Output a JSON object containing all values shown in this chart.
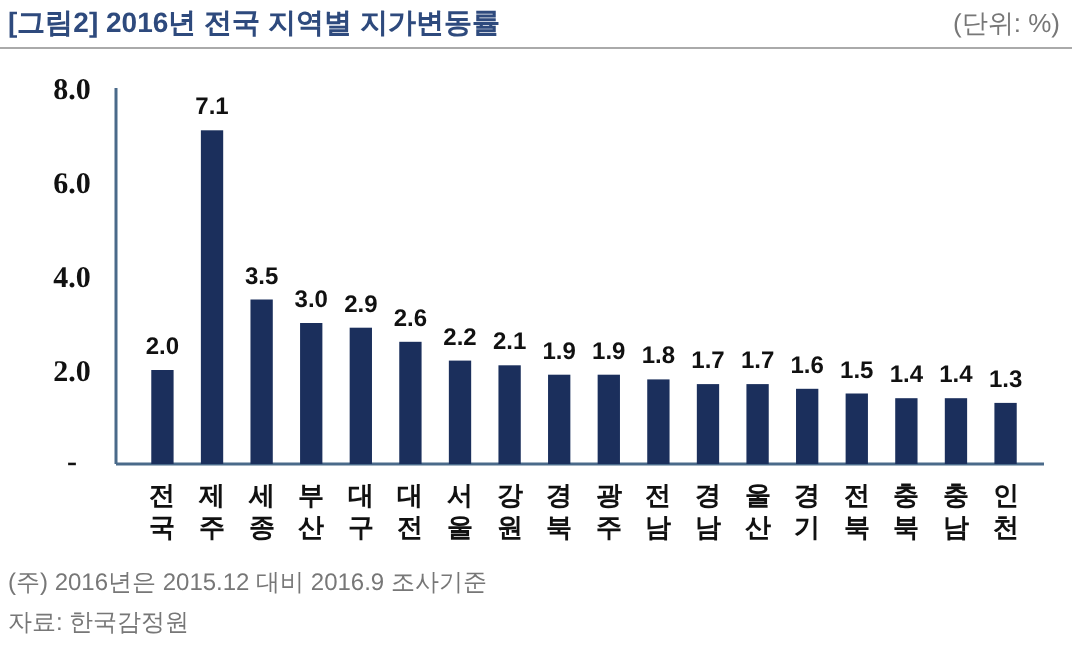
{
  "chart_data": {
    "type": "bar",
    "title": "[그림2] 2016년 전국 지역별 지가변동률",
    "subtitle": "(단위: %)",
    "categories": [
      "전국",
      "제주",
      "세종",
      "부산",
      "대구",
      "대전",
      "서울",
      "강원",
      "경북",
      "광주",
      "전남",
      "경남",
      "울산",
      "경기",
      "전북",
      "충북",
      "충남",
      "인천"
    ],
    "values": [
      2.0,
      7.1,
      3.5,
      3.0,
      2.9,
      2.6,
      2.2,
      2.1,
      1.9,
      1.9,
      1.8,
      1.7,
      1.7,
      1.6,
      1.5,
      1.4,
      1.4,
      1.3
    ],
    "color": "#1b2f5c",
    "ylim": [
      0,
      8
    ],
    "yticks": [
      {
        "value": 0,
        "label": "-"
      },
      {
        "value": 2,
        "label": "2.0"
      },
      {
        "value": 4,
        "label": "4.0"
      },
      {
        "value": 6,
        "label": "6.0"
      },
      {
        "value": 8,
        "label": "8.0"
      }
    ],
    "value_labels": [
      "2.0",
      "7.1",
      "3.5",
      "3.0",
      "2.9",
      "2.6",
      "2.2",
      "2.1",
      "1.9",
      "1.9",
      "1.8",
      "1.7",
      "1.7",
      "1.6",
      "1.5",
      "1.4",
      "1.4",
      "1.3"
    ],
    "annotations": [
      "(주) 2016년은 2015.12 대비 2016.9 조사기준",
      "자료: 한국감정원"
    ]
  }
}
